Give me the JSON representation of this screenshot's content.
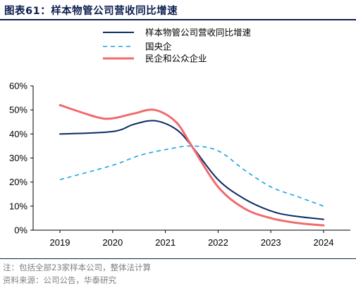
{
  "header": {
    "figure_label": "图表61：",
    "title": "样本物管公司营收同比增速"
  },
  "footer": {
    "note": "注：包括全部23家样本公司，整体法计算",
    "source": "资料来源：公司公告，华泰研究"
  },
  "chart_data": {
    "type": "line",
    "title": "样本物管公司营收同比增速",
    "x": [
      "2019",
      "2020",
      "2021",
      "2022",
      "2023",
      "2024"
    ],
    "xlabel": "",
    "ylabel": "",
    "ylim": [
      0,
      60
    ],
    "y_ticks": [
      "0%",
      "10%",
      "20%",
      "30%",
      "40%",
      "50%",
      "60%"
    ],
    "y_unit": "%",
    "grid": false,
    "legend_position": "top",
    "smooth": true,
    "series": [
      {
        "name": "样本物管公司营收同比增速",
        "color": "#0b2a63",
        "style": "solid",
        "points": [
          [
            2019,
            40
          ],
          [
            2020,
            41
          ],
          [
            2020.4,
            44
          ],
          [
            2020.8,
            45.5
          ],
          [
            2021.2,
            42
          ],
          [
            2021.5,
            35
          ],
          [
            2022,
            21
          ],
          [
            2022.5,
            13
          ],
          [
            2023,
            8
          ],
          [
            2023.4,
            6
          ],
          [
            2024,
            4.5
          ]
        ]
      },
      {
        "name": "国央企",
        "color": "#1aa3e3",
        "style": "dashed",
        "points": [
          [
            2019,
            21
          ],
          [
            2020,
            27
          ],
          [
            2020.5,
            31
          ],
          [
            2021,
            33.5
          ],
          [
            2021.5,
            35
          ],
          [
            2022,
            33
          ],
          [
            2022.5,
            25
          ],
          [
            2023,
            18
          ],
          [
            2023.5,
            14
          ],
          [
            2024,
            10
          ]
        ]
      },
      {
        "name": "民企和公众企业",
        "color": "#f06b6e",
        "style": "solid",
        "points": [
          [
            2019,
            52
          ],
          [
            2019.7,
            47
          ],
          [
            2020,
            46.5
          ],
          [
            2020.4,
            48.5
          ],
          [
            2020.8,
            50
          ],
          [
            2021.2,
            45
          ],
          [
            2021.5,
            35
          ],
          [
            2022,
            18
          ],
          [
            2022.5,
            9
          ],
          [
            2023,
            5
          ],
          [
            2023.5,
            3
          ],
          [
            2024,
            2
          ]
        ]
      }
    ]
  }
}
